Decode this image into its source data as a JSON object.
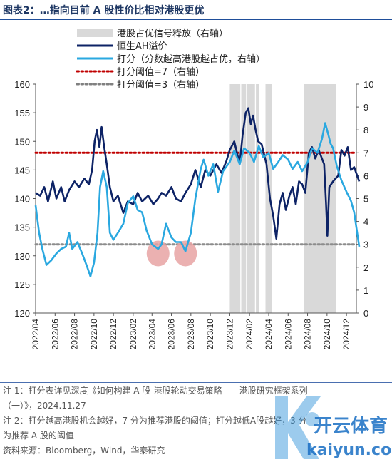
{
  "title": "图表2：…指向目前 A 股性价比相对港股更优",
  "notes": [
    "注 1：打分表详见深度《如何构建 A 股-港股轮动交易策略——港股研究框架系列",
    "（一）》，2024.11.27",
    "注 2：打分越高港股机会越好，7 分为推荐港股的阈值；打分越低A股越好，3 分",
    "为推荐 A 股的阈值",
    "资料来源：Bloomberg，Wind，华泰研究"
  ],
  "watermark": {
    "brand": "开云体育",
    "url": "kaiyun.com"
  },
  "chart_data": {
    "type": "line",
    "title": "",
    "legend": [
      {
        "label": "港股占优信号释放（右轴）",
        "kind": "band",
        "color": "#d9d9d9"
      },
      {
        "label": "恒生AH溢价",
        "kind": "line",
        "color": "#0d2366"
      },
      {
        "label": "打分（分数越高港股越占优，右轴）",
        "kind": "line",
        "color": "#2aa8e0"
      },
      {
        "label": "打分阈值=7（右轴）",
        "kind": "dotted",
        "color": "#c00000"
      },
      {
        "label": "打分阈值=3（右轴）",
        "kind": "dotted",
        "color": "#808080"
      }
    ],
    "x_start": "2022-04",
    "x_end": "2025-01",
    "x_ticks": [
      "2022/04",
      "2022/06",
      "2022/08",
      "2022/10",
      "2022/12",
      "2023/02",
      "2023/04",
      "2023/06",
      "2023/08",
      "2023/10",
      "2023/12",
      "2024/02",
      "2024/04",
      "2024/06",
      "2024/08",
      "2024/10",
      "2024/12"
    ],
    "y_left": {
      "min": 120,
      "max": 160,
      "ticks": [
        120,
        125,
        130,
        135,
        140,
        145,
        150,
        155,
        160
      ]
    },
    "y_right": {
      "min": 0,
      "max": 10,
      "ticks": [
        0,
        1,
        2,
        3,
        4,
        5,
        6,
        7,
        8,
        9,
        10
      ]
    },
    "signal_bands": [
      {
        "start": "2023-12-01",
        "end": "2024-01-03"
      },
      {
        "start": "2024-01-06",
        "end": "2024-01-21"
      },
      {
        "start": "2024-01-24",
        "end": "2024-02-18"
      },
      {
        "start": "2024-02-21",
        "end": "2024-03-01"
      },
      {
        "start": "2024-03-22",
        "end": "2024-04-10"
      },
      {
        "start": "2024-07-21",
        "end": "2024-10-30"
      }
    ],
    "thresholds": [
      {
        "value": 7,
        "axis": "right"
      },
      {
        "value": 3,
        "axis": "right"
      }
    ],
    "highlight_circles": [
      {
        "date": "2023-04-20",
        "value": 2.6,
        "axis": "right"
      },
      {
        "date": "2023-07-15",
        "value": 2.6,
        "axis": "right"
      }
    ],
    "series": [
      {
        "name": "恒生AH溢价",
        "axis": "left",
        "color": "#0d2366",
        "points": [
          [
            "2022-04-01",
            141
          ],
          [
            "2022-04-15",
            140.5
          ],
          [
            "2022-04-28",
            142
          ],
          [
            "2022-05-10",
            139.5
          ],
          [
            "2022-05-25",
            143
          ],
          [
            "2022-06-05",
            140
          ],
          [
            "2022-06-20",
            142
          ],
          [
            "2022-07-01",
            139.5
          ],
          [
            "2022-07-15",
            141.5
          ],
          [
            "2022-08-01",
            143
          ],
          [
            "2022-08-15",
            142
          ],
          [
            "2022-09-01",
            143.5
          ],
          [
            "2022-09-15",
            142.5
          ],
          [
            "2022-09-25",
            145
          ],
          [
            "2022-10-03",
            150
          ],
          [
            "2022-10-10",
            152
          ],
          [
            "2022-10-18",
            149
          ],
          [
            "2022-10-25",
            152.5
          ],
          [
            "2022-11-02",
            149
          ],
          [
            "2022-11-10",
            146
          ],
          [
            "2022-11-20",
            142
          ],
          [
            "2022-12-01",
            139.5
          ],
          [
            "2022-12-15",
            140.5
          ],
          [
            "2023-01-01",
            137.5
          ],
          [
            "2023-01-15",
            139.5
          ],
          [
            "2023-02-01",
            139
          ],
          [
            "2023-02-15",
            141
          ],
          [
            "2023-03-01",
            139.5
          ],
          [
            "2023-03-20",
            140.5
          ],
          [
            "2023-04-05",
            139
          ],
          [
            "2023-04-20",
            140
          ],
          [
            "2023-05-01",
            141
          ],
          [
            "2023-05-15",
            140.5
          ],
          [
            "2023-06-01",
            142
          ],
          [
            "2023-06-15",
            140
          ],
          [
            "2023-07-01",
            139.5
          ],
          [
            "2023-07-15",
            141
          ],
          [
            "2023-08-01",
            142.5
          ],
          [
            "2023-08-15",
            145
          ],
          [
            "2023-09-01",
            142
          ],
          [
            "2023-09-15",
            145
          ],
          [
            "2023-10-01",
            144
          ],
          [
            "2023-10-20",
            146
          ],
          [
            "2023-11-05",
            144.5
          ],
          [
            "2023-11-20",
            146.5
          ],
          [
            "2023-12-01",
            148.5
          ],
          [
            "2023-12-15",
            150
          ],
          [
            "2024-01-01",
            146
          ],
          [
            "2024-01-10",
            151
          ],
          [
            "2024-01-20",
            155
          ],
          [
            "2024-01-28",
            155.8
          ],
          [
            "2024-02-05",
            153
          ],
          [
            "2024-02-12",
            154.5
          ],
          [
            "2024-02-20",
            152
          ],
          [
            "2024-02-28",
            150
          ],
          [
            "2024-03-10",
            149.5
          ],
          [
            "2024-03-25",
            146
          ],
          [
            "2024-04-05",
            140
          ],
          [
            "2024-04-15",
            137
          ],
          [
            "2024-04-25",
            133
          ],
          [
            "2024-05-05",
            139
          ],
          [
            "2024-05-15",
            141
          ],
          [
            "2024-05-25",
            138
          ],
          [
            "2024-06-05",
            140.5
          ],
          [
            "2024-06-15",
            142
          ],
          [
            "2024-06-25",
            139
          ],
          [
            "2024-07-05",
            143
          ],
          [
            "2024-07-15",
            142.5
          ],
          [
            "2024-07-25",
            141
          ],
          [
            "2024-08-05",
            148
          ],
          [
            "2024-08-15",
            149
          ],
          [
            "2024-08-25",
            147
          ],
          [
            "2024-09-05",
            148.5
          ],
          [
            "2024-09-15",
            147
          ],
          [
            "2024-09-22",
            146
          ],
          [
            "2024-09-28",
            139
          ],
          [
            "2024-10-02",
            133.5
          ],
          [
            "2024-10-08",
            142
          ],
          [
            "2024-10-20",
            143
          ],
          [
            "2024-11-05",
            144
          ],
          [
            "2024-11-15",
            148.5
          ],
          [
            "2024-11-25",
            147.5
          ],
          [
            "2024-12-05",
            149
          ],
          [
            "2024-12-15",
            145
          ],
          [
            "2024-12-25",
            145.5
          ],
          [
            "2025-01-10",
            143
          ]
        ]
      },
      {
        "name": "打分（分数越高港股越占优，右轴）",
        "axis": "right",
        "color": "#2aa8e0",
        "points": [
          [
            "2022-04-01",
            4.7
          ],
          [
            "2022-04-12",
            3.5
          ],
          [
            "2022-04-22",
            2.8
          ],
          [
            "2022-05-05",
            2.1
          ],
          [
            "2022-05-20",
            2.3
          ],
          [
            "2022-06-05",
            2.6
          ],
          [
            "2022-06-20",
            2.8
          ],
          [
            "2022-07-05",
            2.9
          ],
          [
            "2022-07-15",
            3.5
          ],
          [
            "2022-07-25",
            2.8
          ],
          [
            "2022-08-10",
            3.1
          ],
          [
            "2022-08-25",
            2.6
          ],
          [
            "2022-09-10",
            2.0
          ],
          [
            "2022-09-20",
            1.6
          ],
          [
            "2022-10-01",
            2.2
          ],
          [
            "2022-10-12",
            3.5
          ],
          [
            "2022-10-20",
            5.5
          ],
          [
            "2022-10-30",
            6.2
          ],
          [
            "2022-11-10",
            5.5
          ],
          [
            "2022-11-20",
            3.5
          ],
          [
            "2022-12-01",
            3.2
          ],
          [
            "2022-12-15",
            3.5
          ],
          [
            "2023-01-01",
            3.9
          ],
          [
            "2023-01-15",
            4.8
          ],
          [
            "2023-02-01",
            5.1
          ],
          [
            "2023-02-15",
            4.5
          ],
          [
            "2023-03-01",
            4.4
          ],
          [
            "2023-03-15",
            3.6
          ],
          [
            "2023-04-01",
            3.0
          ],
          [
            "2023-04-20",
            2.8
          ],
          [
            "2023-05-01",
            3.0
          ],
          [
            "2023-05-15",
            3.9
          ],
          [
            "2023-06-01",
            3.3
          ],
          [
            "2023-06-15",
            3.1
          ],
          [
            "2023-07-01",
            3.1
          ],
          [
            "2023-07-15",
            2.7
          ],
          [
            "2023-08-01",
            3.5
          ],
          [
            "2023-08-15",
            5.0
          ],
          [
            "2023-09-01",
            6.3
          ],
          [
            "2023-09-10",
            6.7
          ],
          [
            "2023-09-25",
            6.0
          ],
          [
            "2023-10-10",
            6.5
          ],
          [
            "2023-10-25",
            5.3
          ],
          [
            "2023-11-10",
            6.2
          ],
          [
            "2023-12-01",
            6.6
          ],
          [
            "2023-12-15",
            7.1
          ],
          [
            "2024-01-01",
            6.5
          ],
          [
            "2024-01-15",
            7.2
          ],
          [
            "2024-02-01",
            7.0
          ],
          [
            "2024-02-15",
            6.6
          ],
          [
            "2024-03-01",
            7.3
          ],
          [
            "2024-03-15",
            6.8
          ],
          [
            "2024-04-01",
            7.0
          ],
          [
            "2024-04-15",
            6.3
          ],
          [
            "2024-05-01",
            6.6
          ],
          [
            "2024-05-15",
            6.9
          ],
          [
            "2024-06-01",
            6.7
          ],
          [
            "2024-06-15",
            6.3
          ],
          [
            "2024-07-01",
            6.6
          ],
          [
            "2024-07-15",
            6.2
          ],
          [
            "2024-08-01",
            6.6
          ],
          [
            "2024-08-15",
            7.2
          ],
          [
            "2024-09-01",
            7.0
          ],
          [
            "2024-09-15",
            7.6
          ],
          [
            "2024-09-25",
            8.3
          ],
          [
            "2024-10-05",
            7.8
          ],
          [
            "2024-10-12",
            7.4
          ],
          [
            "2024-10-20",
            7.2
          ],
          [
            "2024-11-01",
            6.4
          ],
          [
            "2024-11-15",
            5.8
          ],
          [
            "2024-12-01",
            5.3
          ],
          [
            "2024-12-15",
            4.9
          ],
          [
            "2024-12-25",
            4.4
          ],
          [
            "2025-01-10",
            2.9
          ]
        ]
      }
    ]
  }
}
